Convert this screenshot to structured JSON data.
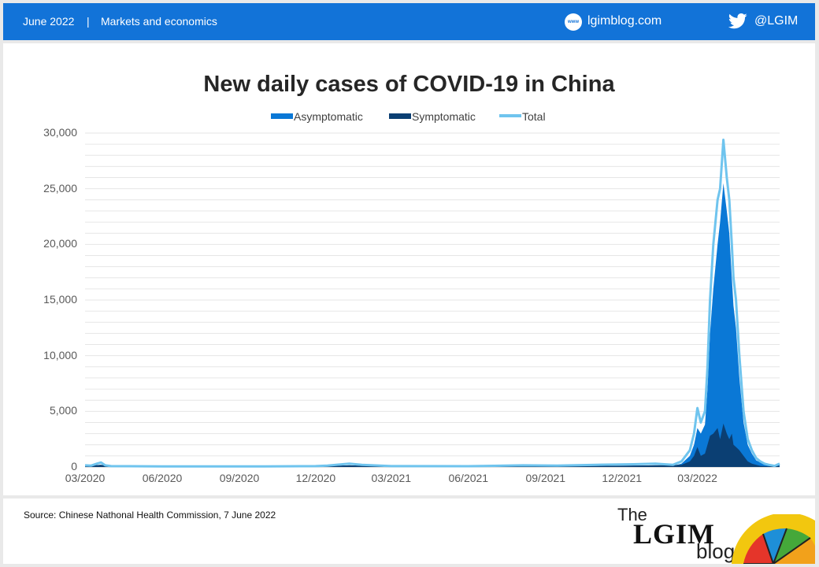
{
  "header": {
    "date": "June 2022",
    "separator": "|",
    "category": "Markets and economics",
    "website_badge": "www",
    "website": "lgimblog.com",
    "twitter": "@LGIM"
  },
  "footer": {
    "source": "Source: Chinese Nathonal Health Commission, 7 June 2022",
    "logo_the": "The",
    "logo_lgim": "LGIM",
    "logo_blog": "blog"
  },
  "colors": {
    "brand_blue": "#1273d8",
    "asymptomatic": "#0a78d6",
    "symptomatic": "#0b3f73",
    "total": "#6fc4ee"
  },
  "chart_data": {
    "type": "area",
    "title": "New daily cases of COVID-19  in China",
    "legend": [
      "Asymptomatic",
      "Symptomatic",
      "Total"
    ],
    "legend_position": "top",
    "ylim": [
      0,
      30000
    ],
    "yticks": [
      "30,000",
      "25,000",
      "20,000",
      "15,000",
      "10,000",
      "5,000",
      "0"
    ],
    "xticks": [
      "03/2020",
      "06/2020",
      "09/2020",
      "12/2020",
      "03/2021",
      "06/2021",
      "09/2021",
      "12/2021",
      "03/2022"
    ],
    "xlim": [
      "2020-03-01",
      "2022-06-07"
    ],
    "grid": true,
    "series": [
      {
        "name": "Total",
        "x": [
          "2020-03-01",
          "2020-03-08",
          "2020-03-15",
          "2020-03-20",
          "2020-03-25",
          "2020-04-01",
          "2020-06-01",
          "2020-08-01",
          "2020-10-01",
          "2020-12-01",
          "2020-12-15",
          "2021-01-10",
          "2021-01-25",
          "2021-03-01",
          "2021-06-01",
          "2021-08-05",
          "2021-09-15",
          "2021-11-01",
          "2021-12-15",
          "2022-01-10",
          "2022-01-31",
          "2022-02-10",
          "2022-02-20",
          "2022-02-25",
          "2022-03-01",
          "2022-03-05",
          "2022-03-10",
          "2022-03-13",
          "2022-03-16",
          "2022-03-20",
          "2022-03-25",
          "2022-03-28",
          "2022-04-01",
          "2022-04-05",
          "2022-04-08",
          "2022-04-11",
          "2022-04-13",
          "2022-04-16",
          "2022-04-20",
          "2022-04-25",
          "2022-04-30",
          "2022-05-05",
          "2022-05-10",
          "2022-05-15",
          "2022-05-20",
          "2022-05-25",
          "2022-06-01",
          "2022-06-07"
        ],
        "values": [
          150,
          120,
          300,
          400,
          150,
          80,
          60,
          50,
          60,
          80,
          120,
          300,
          200,
          80,
          70,
          150,
          120,
          200,
          250,
          300,
          200,
          500,
          1500,
          3000,
          5300,
          4000,
          5000,
          9000,
          15000,
          20000,
          24000,
          25000,
          29400,
          26000,
          24000,
          20000,
          17000,
          15000,
          10000,
          5000,
          2500,
          1500,
          800,
          500,
          300,
          200,
          100,
          300
        ]
      },
      {
        "name": "Asymptomatic",
        "x": [
          "2020-03-01",
          "2020-03-20",
          "2020-04-01",
          "2020-06-01",
          "2020-08-01",
          "2020-10-01",
          "2020-12-01",
          "2021-01-10",
          "2021-01-25",
          "2021-03-01",
          "2021-06-01",
          "2021-08-05",
          "2021-09-15",
          "2021-11-01",
          "2021-12-15",
          "2022-01-10",
          "2022-01-31",
          "2022-02-10",
          "2022-02-20",
          "2022-02-25",
          "2022-03-01",
          "2022-03-05",
          "2022-03-10",
          "2022-03-13",
          "2022-03-16",
          "2022-03-20",
          "2022-03-25",
          "2022-03-28",
          "2022-04-01",
          "2022-04-05",
          "2022-04-08",
          "2022-04-11",
          "2022-04-13",
          "2022-04-16",
          "2022-04-20",
          "2022-04-25",
          "2022-04-30",
          "2022-05-05",
          "2022-05-10",
          "2022-05-15",
          "2022-05-20",
          "2022-05-25",
          "2022-06-01",
          "2022-06-07"
        ],
        "values": [
          60,
          200,
          40,
          30,
          25,
          30,
          40,
          150,
          100,
          40,
          35,
          80,
          60,
          100,
          120,
          150,
          100,
          300,
          1000,
          2000,
          3500,
          3000,
          3800,
          7000,
          12000,
          16000,
          20000,
          22000,
          25500,
          23000,
          21000,
          17000,
          14500,
          12500,
          8000,
          4000,
          2000,
          1200,
          600,
          400,
          250,
          150,
          80,
          200
        ]
      },
      {
        "name": "Symptomatic",
        "x": [
          "2020-03-01",
          "2020-03-20",
          "2020-04-01",
          "2020-06-01",
          "2020-08-01",
          "2020-10-01",
          "2020-12-01",
          "2021-01-10",
          "2021-03-01",
          "2021-06-01",
          "2021-08-05",
          "2021-11-01",
          "2021-12-15",
          "2022-01-10",
          "2022-02-10",
          "2022-02-20",
          "2022-02-25",
          "2022-03-01",
          "2022-03-05",
          "2022-03-10",
          "2022-03-13",
          "2022-03-16",
          "2022-03-20",
          "2022-03-25",
          "2022-03-28",
          "2022-04-01",
          "2022-04-05",
          "2022-04-08",
          "2022-04-11",
          "2022-04-13",
          "2022-04-16",
          "2022-04-20",
          "2022-04-25",
          "2022-04-30",
          "2022-05-05",
          "2022-05-10",
          "2022-05-15",
          "2022-05-25",
          "2022-06-07"
        ],
        "values": [
          90,
          200,
          40,
          30,
          25,
          30,
          40,
          150,
          40,
          35,
          70,
          100,
          130,
          150,
          200,
          500,
          1000,
          1800,
          1000,
          1200,
          2000,
          2800,
          3000,
          3500,
          2500,
          3900,
          3000,
          2500,
          3000,
          2000,
          1800,
          1500,
          1000,
          500,
          300,
          200,
          100,
          50,
          100
        ]
      }
    ]
  }
}
